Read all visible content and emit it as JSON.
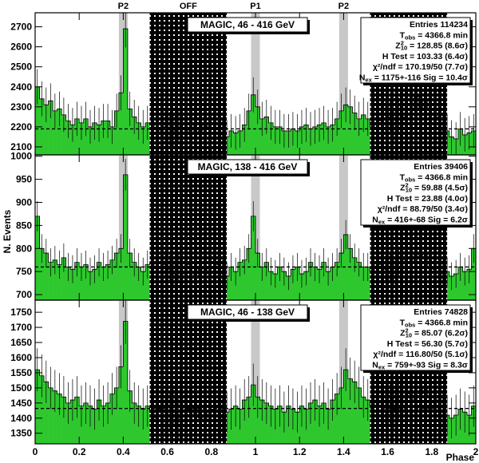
{
  "figure": {
    "xlabel": "Phase",
    "ylabel": "N. Events",
    "region_labels": [
      "P2",
      "OFF",
      "P1",
      "P2"
    ],
    "colors": {
      "histogram_fill": "#2ec82e",
      "phase_band": "#c8c8c8",
      "off_region": "#000000",
      "baseline": "#000000"
    }
  },
  "chart_data": [
    {
      "type": "bar",
      "title": "MAGIC, 46 - 416 GeV",
      "xlim": [
        0,
        2
      ],
      "ylim": [
        2060,
        2770
      ],
      "yticks": [
        2100,
        2200,
        2300,
        2400,
        2500,
        2600,
        2700
      ],
      "xticks": [
        0,
        0.2,
        0.4,
        0.6,
        0.8,
        1,
        1.2,
        1.4,
        1.6,
        1.8,
        2
      ],
      "baseline": 2190,
      "p2_bands": [
        [
          0.38,
          0.42
        ],
        [
          1.38,
          1.42
        ]
      ],
      "p1_band": [
        0.98,
        1.02
      ],
      "off_regions": [
        [
          0.52,
          0.87
        ],
        [
          1.52,
          1.87
        ]
      ],
      "bins": 100,
      "values": [
        2400,
        2340,
        2310,
        2330,
        2280,
        2290,
        2260,
        2230,
        2210,
        2240,
        2220,
        2240,
        2200,
        2220,
        2210,
        2230,
        2230,
        2200,
        2280,
        2370,
        2690,
        2290,
        2250,
        2220,
        2200,
        2220,
        2210,
        2190,
        2180,
        2200,
        2190,
        2180,
        2200,
        2170,
        2180,
        2210,
        2170,
        2180,
        2210,
        2200,
        2190,
        2220,
        2160,
        2150,
        2180,
        2170,
        2180,
        2210,
        2280,
        2360,
        2300,
        2240,
        2250,
        2220,
        2200,
        2200,
        2180,
        2180,
        2190,
        2180,
        2200,
        2210,
        2190,
        2200,
        2210,
        2220,
        2200,
        2210,
        2240,
        2280,
        2310,
        2300,
        2270,
        2240,
        2260,
        2240,
        2200,
        2220,
        2230,
        2240,
        2250,
        2210,
        2260,
        2250,
        2290,
        2280,
        2350,
        2290,
        2340,
        2290,
        2260,
        2250,
        2180,
        2180,
        2150,
        2140,
        2190,
        2160,
        2170,
        2180
      ],
      "stats": [
        {
          "label": "Entries",
          "value": "114234"
        },
        {
          "label": "T_obs",
          "value": "4366.8 min"
        },
        {
          "label": "Z^2_10",
          "value": "128.85",
          "sig": "(8.6σ)"
        },
        {
          "label": "H Test",
          "value": "103.33",
          "sig": "(6.4σ)"
        },
        {
          "label": "χ²/ndf",
          "value": "170.19/50",
          "sig": "(7.7σ)"
        },
        {
          "label": "N_ex",
          "value": "1175+-116",
          "extra": "Sig = 10.4σ"
        }
      ]
    },
    {
      "type": "bar",
      "title": "MAGIC, 138 - 416 GeV",
      "xlim": [
        0,
        2
      ],
      "ylim": [
        688,
        1003
      ],
      "yticks": [
        700,
        750,
        800,
        850,
        900,
        950,
        1000
      ],
      "xticks": [
        0,
        0.2,
        0.4,
        0.6,
        0.8,
        1,
        1.2,
        1.4,
        1.6,
        1.8,
        2
      ],
      "baseline": 760,
      "p2_bands": [
        [
          0.38,
          0.42
        ],
        [
          1.38,
          1.42
        ]
      ],
      "p1_band": [
        0.98,
        1.02
      ],
      "off_regions": [
        [
          0.52,
          0.87
        ],
        [
          1.52,
          1.87
        ]
      ],
      "bins": 100,
      "values": [
        870,
        800,
        790,
        770,
        775,
        765,
        780,
        760,
        755,
        770,
        760,
        765,
        750,
        755,
        770,
        760,
        765,
        775,
        790,
        800,
        960,
        790,
        770,
        760,
        750,
        765,
        770,
        760,
        750,
        765,
        755,
        745,
        760,
        745,
        765,
        750,
        740,
        755,
        760,
        745,
        750,
        765,
        745,
        740,
        760,
        750,
        770,
        775,
        800,
        870,
        790,
        760,
        770,
        750,
        745,
        760,
        750,
        740,
        755,
        760,
        745,
        750,
        770,
        760,
        755,
        770,
        750,
        760,
        770,
        790,
        830,
        800,
        780,
        770,
        760,
        760,
        750,
        770,
        765,
        755,
        760,
        750,
        770,
        775,
        780,
        770,
        790,
        780,
        790,
        760,
        755,
        770,
        745,
        750,
        740,
        745,
        760,
        750,
        755,
        800
      ],
      "stats": [
        {
          "label": "Entries",
          "value": "39406"
        },
        {
          "label": "T_obs",
          "value": "4366.8 min"
        },
        {
          "label": "Z^2_10",
          "value": "59.88",
          "sig": "(4.5σ)"
        },
        {
          "label": "H Test",
          "value": "23.88",
          "sig": "(4.0σ)"
        },
        {
          "label": "χ²/ndf",
          "value": "88.79/50",
          "sig": "(3.4σ)"
        },
        {
          "label": "N_ex",
          "value": "416+-68",
          "extra": "Sig = 6.2σ"
        }
      ]
    },
    {
      "type": "bar",
      "title": "MAGIC, 46 - 138 GeV",
      "xlim": [
        0,
        2
      ],
      "ylim": [
        1315,
        1790
      ],
      "yticks": [
        1350,
        1400,
        1450,
        1500,
        1550,
        1600,
        1650,
        1700,
        1750
      ],
      "xticks": [
        0,
        0.2,
        0.4,
        0.6,
        0.8,
        1,
        1.2,
        1.4,
        1.6,
        1.8,
        2
      ],
      "baseline": 1432,
      "p2_bands": [
        [
          0.38,
          0.42
        ],
        [
          1.38,
          1.42
        ]
      ],
      "p1_band": [
        0.98,
        1.02
      ],
      "off_regions": [
        [
          0.52,
          0.87
        ],
        [
          1.52,
          1.87
        ]
      ],
      "bins": 100,
      "values": [
        1560,
        1540,
        1520,
        1500,
        1490,
        1480,
        1470,
        1450,
        1460,
        1470,
        1440,
        1450,
        1440,
        1430,
        1460,
        1440,
        1450,
        1480,
        1500,
        1570,
        1720,
        1490,
        1450,
        1440,
        1430,
        1440,
        1420,
        1400,
        1430,
        1410,
        1420,
        1440,
        1400,
        1420,
        1430,
        1410,
        1440,
        1400,
        1390,
        1420,
        1430,
        1410,
        1400,
        1420,
        1430,
        1440,
        1430,
        1460,
        1470,
        1510,
        1470,
        1460,
        1450,
        1440,
        1430,
        1440,
        1420,
        1440,
        1430,
        1420,
        1440,
        1430,
        1450,
        1460,
        1440,
        1450,
        1430,
        1460,
        1480,
        1500,
        1560,
        1530,
        1520,
        1500,
        1470,
        1460,
        1440,
        1460,
        1450,
        1440,
        1450,
        1430,
        1460,
        1470,
        1480,
        1460,
        1490,
        1480,
        1500,
        1470,
        1450,
        1460,
        1420,
        1410,
        1400,
        1410,
        1430,
        1420,
        1410,
        1440
      ],
      "stats": [
        {
          "label": "Entries",
          "value": "74828"
        },
        {
          "label": "T_obs",
          "value": "4366.8 min"
        },
        {
          "label": "Z^2_10",
          "value": "85.07",
          "sig": "(6.2σ)"
        },
        {
          "label": "H Test",
          "value": "56.30",
          "sig": "(5.7σ)"
        },
        {
          "label": "χ²/ndf",
          "value": "116.80/50",
          "sig": "(5.1σ)"
        },
        {
          "label": "N_ex",
          "value": "759+-93",
          "extra": "Sig = 8.3σ"
        }
      ]
    }
  ]
}
